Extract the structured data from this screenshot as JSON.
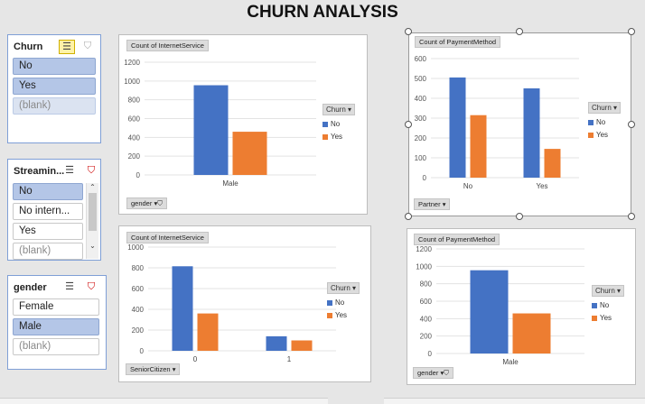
{
  "title": "CHURN ANALYSIS",
  "colors": {
    "no": "#4472c4",
    "yes": "#ed7d31",
    "slicer_selected": "#b4c6e7"
  },
  "slicers": {
    "churn": {
      "header": "Churn",
      "items": [
        {
          "label": "No",
          "state": "selected"
        },
        {
          "label": "Yes",
          "state": "selected"
        },
        {
          "label": "(blank)",
          "state": "dim-selected"
        }
      ]
    },
    "streaming": {
      "header": "Streamin...",
      "items": [
        {
          "label": "No",
          "state": "selected"
        },
        {
          "label": "No intern...",
          "state": "normal"
        },
        {
          "label": "Yes",
          "state": "normal"
        },
        {
          "label": "(blank)",
          "state": "dim"
        }
      ]
    },
    "gender": {
      "header": "gender",
      "items": [
        {
          "label": "Female",
          "state": "normal"
        },
        {
          "label": "Male",
          "state": "selected"
        },
        {
          "label": "(blank)",
          "state": "dim"
        }
      ]
    }
  },
  "charts": {
    "c1": {
      "value_button": "Count of InternetService",
      "axis_button": "gender",
      "legend_title": "Churn",
      "legend_no": "No",
      "legend_yes": "Yes"
    },
    "c2": {
      "value_button": "Count of PaymentMethod",
      "axis_button": "Partner",
      "legend_title": "Churn",
      "legend_no": "No",
      "legend_yes": "Yes"
    },
    "c3": {
      "value_button": "Count of InternetService",
      "axis_button": "SeniorCitizen",
      "legend_title": "Churn",
      "legend_no": "No",
      "legend_yes": "Yes"
    },
    "c4": {
      "value_button": "Count of PaymentMethod",
      "axis_button": "gender",
      "legend_title": "Churn",
      "legend_no": "No",
      "legend_yes": "Yes"
    }
  },
  "chart_data": [
    {
      "type": "bar",
      "categories": [
        "Male"
      ],
      "series": [
        {
          "name": "No",
          "values": [
            955
          ]
        },
        {
          "name": "Yes",
          "values": [
            460
          ]
        }
      ],
      "ylim": [
        0,
        1200
      ],
      "yticks": [
        0,
        200,
        400,
        600,
        800,
        1000,
        1200
      ],
      "xlabel": "gender",
      "ylabel": "Count of InternetService"
    },
    {
      "type": "bar",
      "categories": [
        "No",
        "Yes"
      ],
      "series": [
        {
          "name": "No",
          "values": [
            505,
            450
          ]
        },
        {
          "name": "Yes",
          "values": [
            315,
            145
          ]
        }
      ],
      "ylim": [
        0,
        600
      ],
      "yticks": [
        0,
        100,
        200,
        300,
        400,
        500,
        600
      ],
      "xlabel": "Partner",
      "ylabel": "Count of PaymentMethod"
    },
    {
      "type": "bar",
      "categories": [
        "0",
        "1"
      ],
      "series": [
        {
          "name": "No",
          "values": [
            815,
            140
          ]
        },
        {
          "name": "Yes",
          "values": [
            360,
            100
          ]
        }
      ],
      "ylim": [
        0,
        1000
      ],
      "yticks": [
        0,
        200,
        400,
        600,
        800,
        1000
      ],
      "xlabel": "SeniorCitizen",
      "ylabel": "Count of InternetService"
    },
    {
      "type": "bar",
      "categories": [
        "Male"
      ],
      "series": [
        {
          "name": "No",
          "values": [
            955
          ]
        },
        {
          "name": "Yes",
          "values": [
            460
          ]
        }
      ],
      "ylim": [
        0,
        1200
      ],
      "yticks": [
        0,
        200,
        400,
        600,
        800,
        1000,
        1200
      ],
      "xlabel": "gender",
      "ylabel": "Count of PaymentMethod"
    }
  ]
}
